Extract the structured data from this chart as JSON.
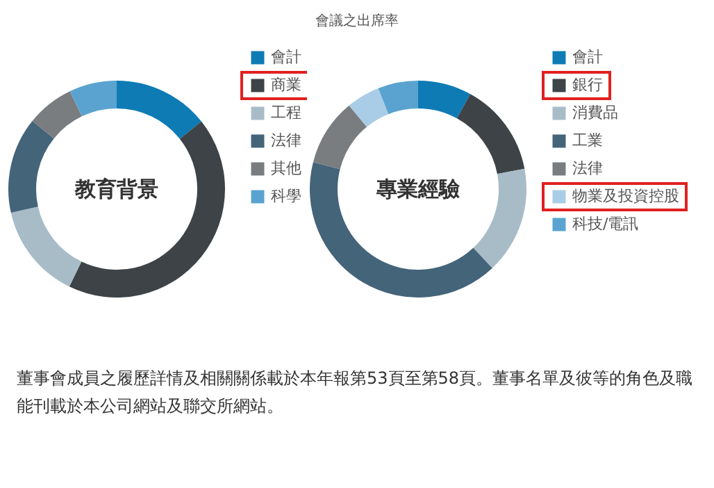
{
  "chart_data": [
    {
      "type": "donut",
      "title": "教育背景",
      "categories": [
        "會計",
        "商業",
        "工程",
        "法律",
        "其他",
        "科學"
      ],
      "values": [
        14.3,
        42.9,
        14.3,
        14.3,
        7.1,
        7.1
      ],
      "colors": [
        "#0e7bb5",
        "#3d4347",
        "#a8bcc8",
        "#44647a",
        "#7a7d80",
        "#5aa3d0"
      ],
      "legend": "right",
      "annotations": [
        "董事會成員之履歷詳情及相關關係載於本年報第53頁至第58頁。董事名單及彼等的角色及職能刊載於本公司網站及聯交所網站。"
      ]
    },
    {
      "type": "donut",
      "title": "專業經驗",
      "categories": [
        "會計",
        "銀行",
        "消費品",
        "工業",
        "法律",
        "物業及投資控股",
        "科技/電訊"
      ],
      "values": [
        8,
        14,
        16,
        41,
        10,
        5,
        6
      ],
      "colors": [
        "#0e7bb5",
        "#3d4347",
        "#a8bcc8",
        "#44647a",
        "#7a7d80",
        "#a9cde6",
        "#5aa3d0"
      ],
      "legend": "right",
      "annotations": [
        "會議之出席率"
      ]
    }
  ]
}
